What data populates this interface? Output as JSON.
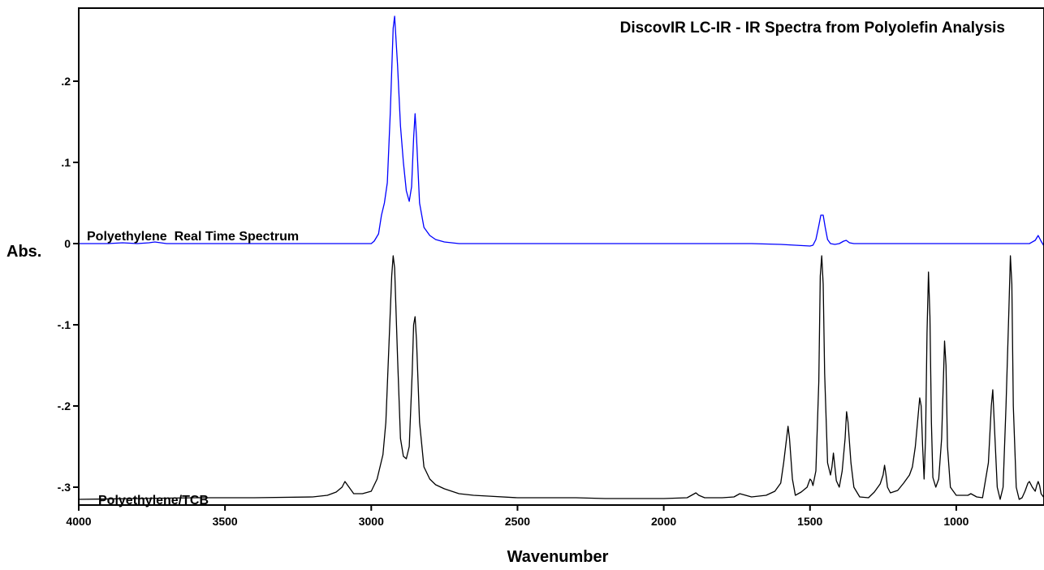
{
  "chart_data": {
    "type": "line",
    "title": "DiscovIR LC-IR - IR Spectra from Polyolefin Analysis",
    "xlabel": "Wavenumber",
    "ylabel": "Abs.",
    "xlim": [
      4000,
      700
    ],
    "x_reversed": true,
    "ylim": [
      -0.322,
      0.29
    ],
    "x_ticks": [
      4000,
      3500,
      3000,
      2500,
      2000,
      1500,
      1000
    ],
    "y_ticks": [
      0.2,
      0.1,
      0,
      -0.1,
      -0.2,
      -0.3
    ],
    "y_tick_labels": [
      ".2",
      ".1",
      "0",
      "-.1",
      "-.2",
      "-.3"
    ],
    "grid": false,
    "series": [
      {
        "name": "Polyethylene  Real Time Spectrum",
        "color": "#0000ff",
        "x": [
          4000,
          3900,
          3850,
          3800,
          3760,
          3740,
          3700,
          3600,
          3500,
          3400,
          3300,
          3200,
          3100,
          3050,
          3000,
          2990,
          2975,
          2965,
          2955,
          2945,
          2935,
          2925,
          2920,
          2910,
          2900,
          2890,
          2880,
          2870,
          2862,
          2855,
          2850,
          2845,
          2835,
          2820,
          2800,
          2780,
          2750,
          2700,
          2600,
          2500,
          2400,
          2300,
          2200,
          2100,
          2000,
          1900,
          1800,
          1700,
          1600,
          1550,
          1500,
          1490,
          1480,
          1470,
          1463,
          1455,
          1448,
          1440,
          1430,
          1415,
          1400,
          1385,
          1376,
          1365,
          1350,
          1300,
          1200,
          1100,
          1000,
          900,
          800,
          750,
          730,
          720,
          710,
          700
        ],
        "values": [
          0.0,
          0.0,
          0.001,
          0.0,
          0.001,
          0.002,
          0.0,
          0.0,
          0.0,
          0.0,
          0.0,
          0.0,
          0.0,
          0.0,
          0.0,
          0.003,
          0.012,
          0.035,
          0.05,
          0.075,
          0.16,
          0.265,
          0.28,
          0.22,
          0.145,
          0.1,
          0.065,
          0.052,
          0.07,
          0.13,
          0.16,
          0.13,
          0.05,
          0.02,
          0.01,
          0.005,
          0.002,
          0.0,
          0.0,
          0.0,
          0.0,
          0.0,
          0.0,
          0.0,
          0.0,
          0.0,
          0.0,
          0.0,
          -0.001,
          -0.002,
          -0.003,
          -0.002,
          0.005,
          0.022,
          0.035,
          0.035,
          0.02,
          0.005,
          0.0,
          -0.001,
          0.0,
          0.003,
          0.004,
          0.001,
          0.0,
          0.0,
          0.0,
          0.0,
          0.0,
          0.0,
          0.0,
          0.0,
          0.004,
          0.01,
          0.003,
          -0.003
        ]
      },
      {
        "name": "Polyethylene/TCB",
        "color": "#000000",
        "x": [
          4000,
          3800,
          3600,
          3400,
          3200,
          3150,
          3120,
          3100,
          3090,
          3080,
          3060,
          3030,
          3000,
          2980,
          2960,
          2950,
          2940,
          2930,
          2925,
          2920,
          2910,
          2900,
          2890,
          2880,
          2870,
          2860,
          2855,
          2850,
          2845,
          2835,
          2820,
          2800,
          2780,
          2750,
          2700,
          2650,
          2600,
          2500,
          2400,
          2300,
          2200,
          2100,
          2000,
          1920,
          1900,
          1890,
          1880,
          1860,
          1800,
          1760,
          1740,
          1720,
          1700,
          1650,
          1620,
          1600,
          1590,
          1580,
          1575,
          1570,
          1560,
          1550,
          1530,
          1510,
          1500,
          1495,
          1490,
          1480,
          1470,
          1465,
          1460,
          1455,
          1450,
          1440,
          1430,
          1425,
          1420,
          1415,
          1410,
          1400,
          1390,
          1380,
          1375,
          1370,
          1360,
          1350,
          1330,
          1300,
          1280,
          1260,
          1250,
          1245,
          1240,
          1235,
          1225,
          1200,
          1180,
          1160,
          1150,
          1140,
          1130,
          1125,
          1120,
          1115,
          1110,
          1105,
          1100,
          1095,
          1090,
          1085,
          1080,
          1070,
          1060,
          1050,
          1045,
          1040,
          1035,
          1030,
          1020,
          1000,
          980,
          960,
          950,
          940,
          930,
          910,
          890,
          880,
          875,
          870,
          860,
          850,
          840,
          830,
          820,
          815,
          810,
          805,
          795,
          785,
          775,
          765,
          760,
          755,
          750,
          740,
          730,
          725,
          720,
          715,
          710,
          700
        ],
        "values": [
          -0.315,
          -0.314,
          -0.313,
          -0.313,
          -0.312,
          -0.31,
          -0.306,
          -0.3,
          -0.293,
          -0.298,
          -0.308,
          -0.308,
          -0.305,
          -0.29,
          -0.26,
          -0.22,
          -0.13,
          -0.04,
          -0.015,
          -0.03,
          -0.14,
          -0.24,
          -0.262,
          -0.265,
          -0.25,
          -0.16,
          -0.1,
          -0.09,
          -0.12,
          -0.22,
          -0.275,
          -0.29,
          -0.297,
          -0.302,
          -0.308,
          -0.31,
          -0.311,
          -0.313,
          -0.313,
          -0.313,
          -0.314,
          -0.314,
          -0.314,
          -0.313,
          -0.309,
          -0.307,
          -0.31,
          -0.313,
          -0.313,
          -0.312,
          -0.308,
          -0.31,
          -0.312,
          -0.31,
          -0.305,
          -0.295,
          -0.27,
          -0.24,
          -0.225,
          -0.24,
          -0.29,
          -0.31,
          -0.306,
          -0.3,
          -0.29,
          -0.292,
          -0.298,
          -0.28,
          -0.17,
          -0.04,
          -0.015,
          -0.05,
          -0.16,
          -0.27,
          -0.285,
          -0.275,
          -0.258,
          -0.275,
          -0.292,
          -0.3,
          -0.28,
          -0.24,
          -0.207,
          -0.22,
          -0.27,
          -0.3,
          -0.312,
          -0.313,
          -0.306,
          -0.296,
          -0.285,
          -0.273,
          -0.285,
          -0.3,
          -0.307,
          -0.304,
          -0.295,
          -0.285,
          -0.275,
          -0.25,
          -0.21,
          -0.19,
          -0.2,
          -0.25,
          -0.29,
          -0.24,
          -0.11,
          -0.035,
          -0.09,
          -0.22,
          -0.288,
          -0.3,
          -0.29,
          -0.24,
          -0.18,
          -0.12,
          -0.15,
          -0.25,
          -0.3,
          -0.31,
          -0.31,
          -0.31,
          -0.308,
          -0.31,
          -0.312,
          -0.313,
          -0.27,
          -0.2,
          -0.18,
          -0.22,
          -0.3,
          -0.315,
          -0.3,
          -0.2,
          -0.08,
          -0.015,
          -0.05,
          -0.2,
          -0.3,
          -0.315,
          -0.313,
          -0.305,
          -0.3,
          -0.295,
          -0.293,
          -0.3,
          -0.305,
          -0.298,
          -0.293,
          -0.298,
          -0.308,
          -0.313
        ]
      }
    ]
  },
  "labels": {
    "series_1": "Polyethylene  Real Time Spectrum",
    "series_2": "Polyethylene/TCB"
  }
}
